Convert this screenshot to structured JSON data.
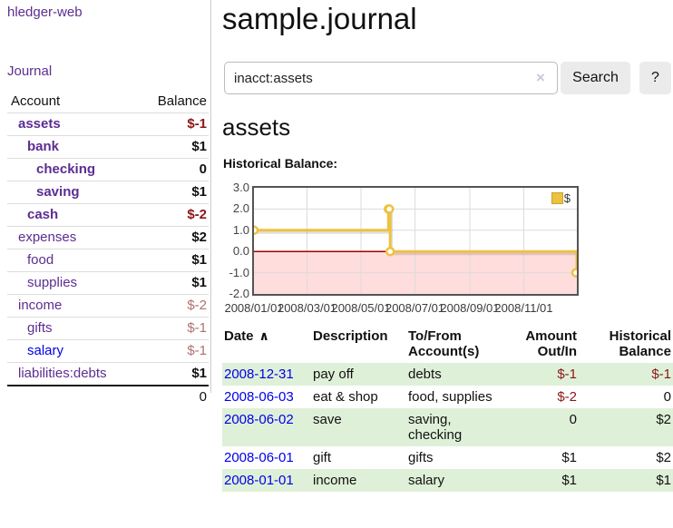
{
  "colors": {
    "link_purple": "#5c2d91",
    "link_blue": "#0000e6",
    "negative_strong": "#8b1717",
    "negative_weak": "#b07070",
    "row_stripe_green": "#dff0d8",
    "chart_line": "#edc240",
    "chart_negative_fill": "#ffdddd",
    "chart_zero_line": "#a00000",
    "chart_border": "#545454",
    "grid": "#dcdcdc"
  },
  "sidebar": {
    "app_title": "hledger-web",
    "journal_link": "Journal",
    "table": {
      "account_header": "Account",
      "balance_header": "Balance",
      "rows": [
        {
          "account": "assets",
          "depth": 0,
          "bold": true,
          "link_color": "purple",
          "balance": "$-1",
          "balance_style": "neg-strong",
          "balance_bold": true
        },
        {
          "account": "bank",
          "depth": 1,
          "bold": true,
          "link_color": "purple",
          "balance": "$1",
          "balance_style": "",
          "balance_bold": true
        },
        {
          "account": "checking",
          "depth": 2,
          "bold": true,
          "link_color": "purple",
          "balance": "0",
          "balance_style": "",
          "balance_bold": true
        },
        {
          "account": "saving",
          "depth": 2,
          "bold": true,
          "link_color": "purple",
          "balance": "$1",
          "balance_style": "",
          "balance_bold": true
        },
        {
          "account": "cash",
          "depth": 1,
          "bold": true,
          "link_color": "purple",
          "balance": "$-2",
          "balance_style": "neg-strong",
          "balance_bold": true
        },
        {
          "account": "expenses",
          "depth": 0,
          "bold": false,
          "link_color": "purple",
          "balance": "$2",
          "balance_style": "",
          "balance_bold": true
        },
        {
          "account": "food",
          "depth": 1,
          "bold": false,
          "link_color": "purple",
          "balance": "$1",
          "balance_style": "",
          "balance_bold": true
        },
        {
          "account": "supplies",
          "depth": 1,
          "bold": false,
          "link_color": "purple",
          "balance": "$1",
          "balance_style": "",
          "balance_bold": true
        },
        {
          "account": "income",
          "depth": 0,
          "bold": false,
          "link_color": "purple",
          "balance": "$-2",
          "balance_style": "neg-weak",
          "balance_bold": false
        },
        {
          "account": "gifts",
          "depth": 1,
          "bold": false,
          "link_color": "purple",
          "balance": "$-1",
          "balance_style": "neg-weak",
          "balance_bold": false
        },
        {
          "account": "salary",
          "depth": 1,
          "bold": false,
          "link_color": "blue",
          "balance": "$-1",
          "balance_style": "neg-weak",
          "balance_bold": false
        },
        {
          "account": "liabilities:debts",
          "depth": 0,
          "bold": false,
          "link_color": "purple",
          "balance": "$1",
          "balance_style": "",
          "balance_bold": true
        }
      ],
      "total": "0"
    }
  },
  "main": {
    "title": "sample.journal",
    "search": {
      "value": "inacct:assets",
      "clear_icon": "×",
      "button_label": "Search",
      "help_label": "?"
    },
    "account_heading": "assets",
    "chart_label": "Historical Balance:"
  },
  "chart_data": {
    "type": "line",
    "title": "Historical Balance",
    "step": true,
    "legend": [
      {
        "label": "$",
        "color": "#edc240"
      }
    ],
    "legend_position": "top-right",
    "grid": true,
    "ylim": [
      -2,
      3
    ],
    "y_ticks": [
      "3.0",
      "2.0",
      "1.0",
      "0.0",
      "-1.0",
      "-2.0"
    ],
    "y_tick_values": [
      3,
      2,
      1,
      0,
      -1,
      -2
    ],
    "x_range": [
      "2008-01-01",
      "2008-12-31"
    ],
    "x_ticks": [
      {
        "label": "2008/01/01",
        "date": "2008-01-01"
      },
      {
        "label": "2008/03/01",
        "date": "2008-03-01"
      },
      {
        "label": "2008/05/01",
        "date": "2008-05-01"
      },
      {
        "label": "2008/07/01",
        "date": "2008-07-01"
      },
      {
        "label": "2008/09/01",
        "date": "2008-09-01"
      },
      {
        "label": "2008/11/01",
        "date": "2008-11-01"
      }
    ],
    "points": [
      {
        "date": "2008-01-01",
        "value": 1
      },
      {
        "date": "2008-06-01",
        "value": 2
      },
      {
        "date": "2008-06-02",
        "value": 2
      },
      {
        "date": "2008-06-03",
        "value": 0
      },
      {
        "date": "2008-12-31",
        "value": -1
      }
    ]
  },
  "register": {
    "headers": [
      {
        "label": "Date",
        "sort": "asc",
        "align": "left"
      },
      {
        "label": "Description",
        "align": "left"
      },
      {
        "label": "To/From Account(s)",
        "align": "left"
      },
      {
        "label": "Amount Out/In",
        "align": "right"
      },
      {
        "label": "Historical Balance",
        "align": "right"
      }
    ],
    "sort_icon": "∧",
    "rows": [
      {
        "date": "2008-12-31",
        "description": "pay off",
        "accounts": "debts",
        "amount": "$-1",
        "amount_negative": true,
        "balance": "$-1",
        "balance_negative": true
      },
      {
        "date": "2008-06-03",
        "description": "eat & shop",
        "accounts": "food, supplies",
        "amount": "$-2",
        "amount_negative": true,
        "balance": "0",
        "balance_negative": false
      },
      {
        "date": "2008-06-02",
        "description": "save",
        "accounts": "saving, checking",
        "amount": "0",
        "amount_negative": false,
        "balance": "$2",
        "balance_negative": false
      },
      {
        "date": "2008-06-01",
        "description": "gift",
        "accounts": "gifts",
        "amount": "$1",
        "amount_negative": false,
        "balance": "$2",
        "balance_negative": false
      },
      {
        "date": "2008-01-01",
        "description": "income",
        "accounts": "salary",
        "amount": "$1",
        "amount_negative": false,
        "balance": "$1",
        "balance_negative": false
      }
    ]
  }
}
